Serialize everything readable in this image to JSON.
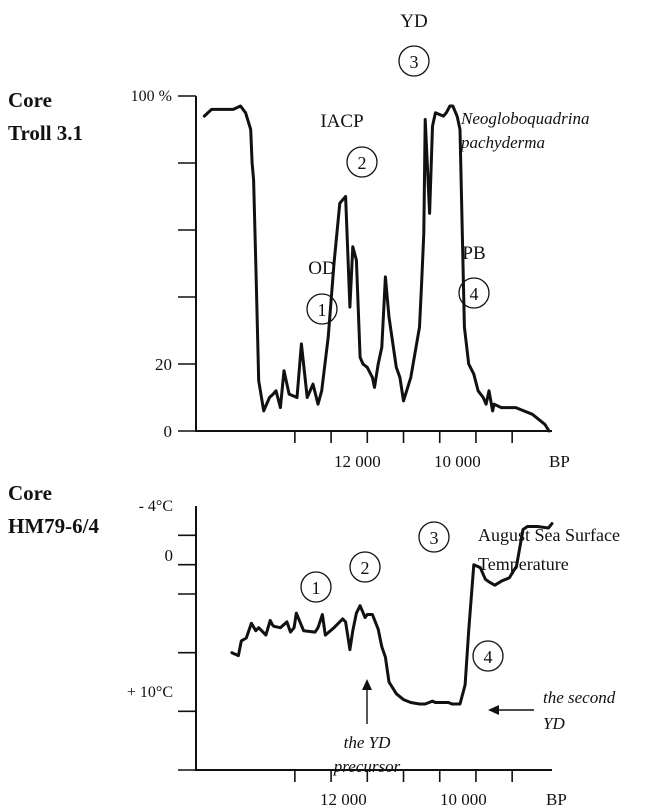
{
  "chart_data": [
    {
      "type": "line",
      "panel_title": [
        "Core",
        "Troll 3.1"
      ],
      "series_name": [
        "Neogloboquadrina",
        "pachyderma"
      ],
      "y_tick_labels": [
        "100 %",
        "20",
        "0"
      ],
      "y_ticks": [
        0,
        20,
        40,
        60,
        80,
        100
      ],
      "ylim": [
        0,
        100
      ],
      "x_tick_labels": [
        "12 000",
        "10 000"
      ],
      "x_axis_unit": "BP",
      "x_ticks": [
        12500,
        12000,
        11500,
        11000,
        10500,
        10000,
        9500
      ],
      "xlim": [
        13865,
        8950
      ],
      "events": [
        {
          "id": "1",
          "label": "OD",
          "x": 12130,
          "y": 29
        },
        {
          "id": "2",
          "label": "IACP",
          "x": 11665,
          "y": 80
        },
        {
          "id": "3",
          "label": "YD",
          "x": 10870,
          "y": 100
        },
        {
          "id": "4",
          "label": "PB",
          "x": 10065,
          "y": 41
        }
      ],
      "series": [
        {
          "x": [
            13750,
            13650,
            13500,
            13350,
            13250,
            13180,
            13110,
            13090,
            13070,
            13040,
            13000,
            12930,
            12850,
            12800,
            12760,
            12700,
            12650,
            12580,
            12470,
            12410,
            12330,
            12250,
            12180,
            12130,
            12040,
            11960,
            11880,
            11800,
            11740,
            11700,
            11650,
            11600,
            11560,
            11500,
            11430,
            11400,
            11350,
            11300,
            11250,
            11200,
            11100,
            11050,
            11000,
            10900,
            10780,
            10750,
            10720,
            10700,
            10640,
            10600,
            10560,
            10450,
            10410,
            10360,
            10320,
            10260,
            10220,
            10160,
            10100,
            10030,
            9970,
            9900,
            9860,
            9820,
            9770,
            9750,
            9650,
            9450,
            9220,
            9050,
            8990
          ],
          "y": [
            94,
            96,
            96,
            96,
            97,
            95,
            90,
            80,
            75,
            50,
            15,
            6,
            10,
            11,
            12,
            7,
            18,
            11,
            10,
            26,
            10,
            14,
            8,
            12,
            28,
            50,
            68,
            70,
            37,
            55,
            51,
            22,
            20,
            19,
            16,
            13,
            20,
            25,
            46,
            34,
            19,
            16,
            9,
            16,
            31,
            44,
            59,
            93,
            65,
            91,
            95,
            94,
            95,
            97,
            97,
            94,
            90,
            31,
            20,
            17,
            12,
            10,
            8,
            12,
            6,
            8,
            7,
            7,
            5,
            2,
            0
          ]
        }
      ]
    },
    {
      "type": "line",
      "panel_title": [
        "Core",
        "HM79-6/4"
      ],
      "series_name": [
        "August Sea Surface",
        "Temperature"
      ],
      "y_tick_labels": [
        "- 4°C",
        "0",
        "+ 10°C"
      ],
      "y_ticks": [
        -4,
        0,
        4,
        8,
        10,
        12
      ],
      "ylim": [
        -4,
        14
      ],
      "x_tick_labels": [
        "12 000",
        "10 000"
      ],
      "x_axis_unit": "BP",
      "x_ticks": [
        12500,
        12000,
        11500,
        11000,
        10500,
        10000,
        9500
      ],
      "xlim": [
        13865,
        8950
      ],
      "events": [
        {
          "id": "1",
          "label": "",
          "x": 12580,
          "y": 3.4
        },
        {
          "id": "2",
          "label": "",
          "x": 11980,
          "y": 2.5
        },
        {
          "id": "3",
          "label": "",
          "x": 10780,
          "y": 0.6
        },
        {
          "id": "4",
          "label": "",
          "x": 10115,
          "y": 6.7
        }
      ],
      "annotations": [
        {
          "text": [
            "the YD",
            "precursor"
          ],
          "x": 11670,
          "y": 7.2
        },
        {
          "text": [
            "the second",
            "YD"
          ],
          "x": 9830,
          "y": 9.5
        }
      ],
      "series": [
        {
          "x": [
            13370,
            13280,
            13240,
            13170,
            13100,
            13040,
            13000,
            12900,
            12840,
            12810,
            12790,
            12700,
            12610,
            12560,
            12510,
            12480,
            12380,
            12220,
            12180,
            12120,
            12080,
            11960,
            11900,
            11840,
            11800,
            11740,
            11700,
            11650,
            11600,
            11530,
            11500,
            11430,
            11350,
            11300,
            11250,
            11200,
            11100,
            11050,
            11000,
            10900,
            10780,
            10700,
            10600,
            10560,
            10450,
            10380,
            10330,
            10220,
            10150,
            10100,
            10030,
            9940,
            9870,
            9810,
            9740,
            9640,
            9540,
            9440,
            9350,
            9290,
            9150,
            9000,
            8950
          ],
          "y": [
            4.0,
            3.8,
            4.8,
            5.0,
            6.0,
            5.5,
            5.7,
            5.2,
            6.2,
            5.9,
            5.8,
            5.7,
            6.1,
            5.4,
            5.7,
            6.7,
            5.5,
            5.4,
            5.7,
            6.6,
            5.2,
            5.7,
            6.0,
            6.3,
            6.1,
            4.2,
            5.5,
            6.7,
            7.2,
            6.4,
            6.6,
            6.6,
            5.6,
            4.4,
            3.7,
            2.0,
            1.2,
            1.0,
            0.8,
            0.6,
            0.5,
            0.5,
            0.7,
            0.6,
            0.6,
            0.6,
            0.5,
            0.5,
            1.8,
            5.5,
            10.0,
            9.8,
            9.0,
            8.8,
            8.6,
            8.9,
            9.1,
            9.9,
            12.4,
            12.6,
            12.6,
            12.5,
            12.8
          ]
        }
      ]
    }
  ]
}
